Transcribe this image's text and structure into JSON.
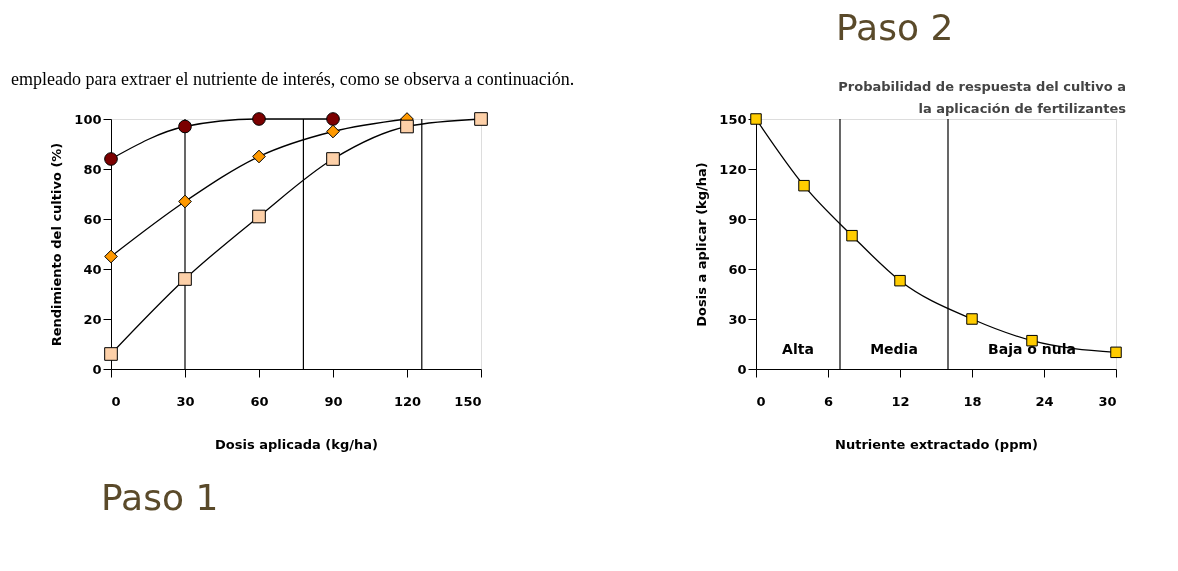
{
  "chart_data": [
    {
      "type": "line",
      "xlabel": "Dosis aplicada (kg/ha)",
      "ylabel": "Rendimiento del cultivo (%)",
      "xlim": [
        0,
        150
      ],
      "xticks": [
        0,
        30,
        60,
        90,
        120,
        150
      ],
      "ylim": [
        0,
        100
      ],
      "yticks": [
        0,
        20,
        40,
        60,
        80,
        100
      ],
      "grid": false,
      "legend": false,
      "series": [
        {
          "color": "#7b0000",
          "marker": "circle",
          "x": [
            0,
            30,
            60,
            90
          ],
          "values": [
            84,
            97,
            100,
            100
          ]
        },
        {
          "color": "#ff9900",
          "marker": "diamond",
          "x": [
            0,
            30,
            60,
            90,
            120
          ],
          "values": [
            45,
            67,
            85,
            95,
            100
          ]
        },
        {
          "color": "#fdd0a8",
          "marker": "square",
          "x": [
            0,
            30,
            60,
            90,
            120,
            150
          ],
          "values": [
            6,
            36,
            61,
            84,
            97,
            100
          ]
        }
      ],
      "ref_lines": [
        {
          "axis": "x",
          "value": 30
        },
        {
          "axis": "x",
          "value": 78
        },
        {
          "axis": "x",
          "value": 126
        }
      ],
      "annotations": [
        "empleado para extraer el nutriente de interés, como se observa a continuación.",
        "Paso 1"
      ]
    },
    {
      "type": "line",
      "title": "Probabilidad de respuesta del cultivo a\nla aplicación de fertilizantes",
      "xlabel": "Nutriente extractado (ppm)",
      "ylabel": "Dosis a aplicar (kg/ha)",
      "xlim": [
        0,
        30
      ],
      "xticks": [
        0,
        6,
        12,
        18,
        24,
        30
      ],
      "ylim": [
        0,
        150
      ],
      "yticks": [
        0,
        30,
        60,
        90,
        120,
        150
      ],
      "grid": false,
      "legend": false,
      "series": [
        {
          "color": "#ffcc00",
          "marker": "square",
          "x": [
            0,
            4,
            8,
            12,
            18,
            23,
            30
          ],
          "values": [
            150,
            110,
            80,
            53,
            30,
            17,
            10
          ]
        }
      ],
      "ref_lines": [
        {
          "axis": "x",
          "value": 7
        },
        {
          "axis": "x",
          "value": 16
        }
      ],
      "annotations": [
        "Alta",
        "Media",
        "Baja o nula",
        "Paso 2"
      ]
    }
  ]
}
